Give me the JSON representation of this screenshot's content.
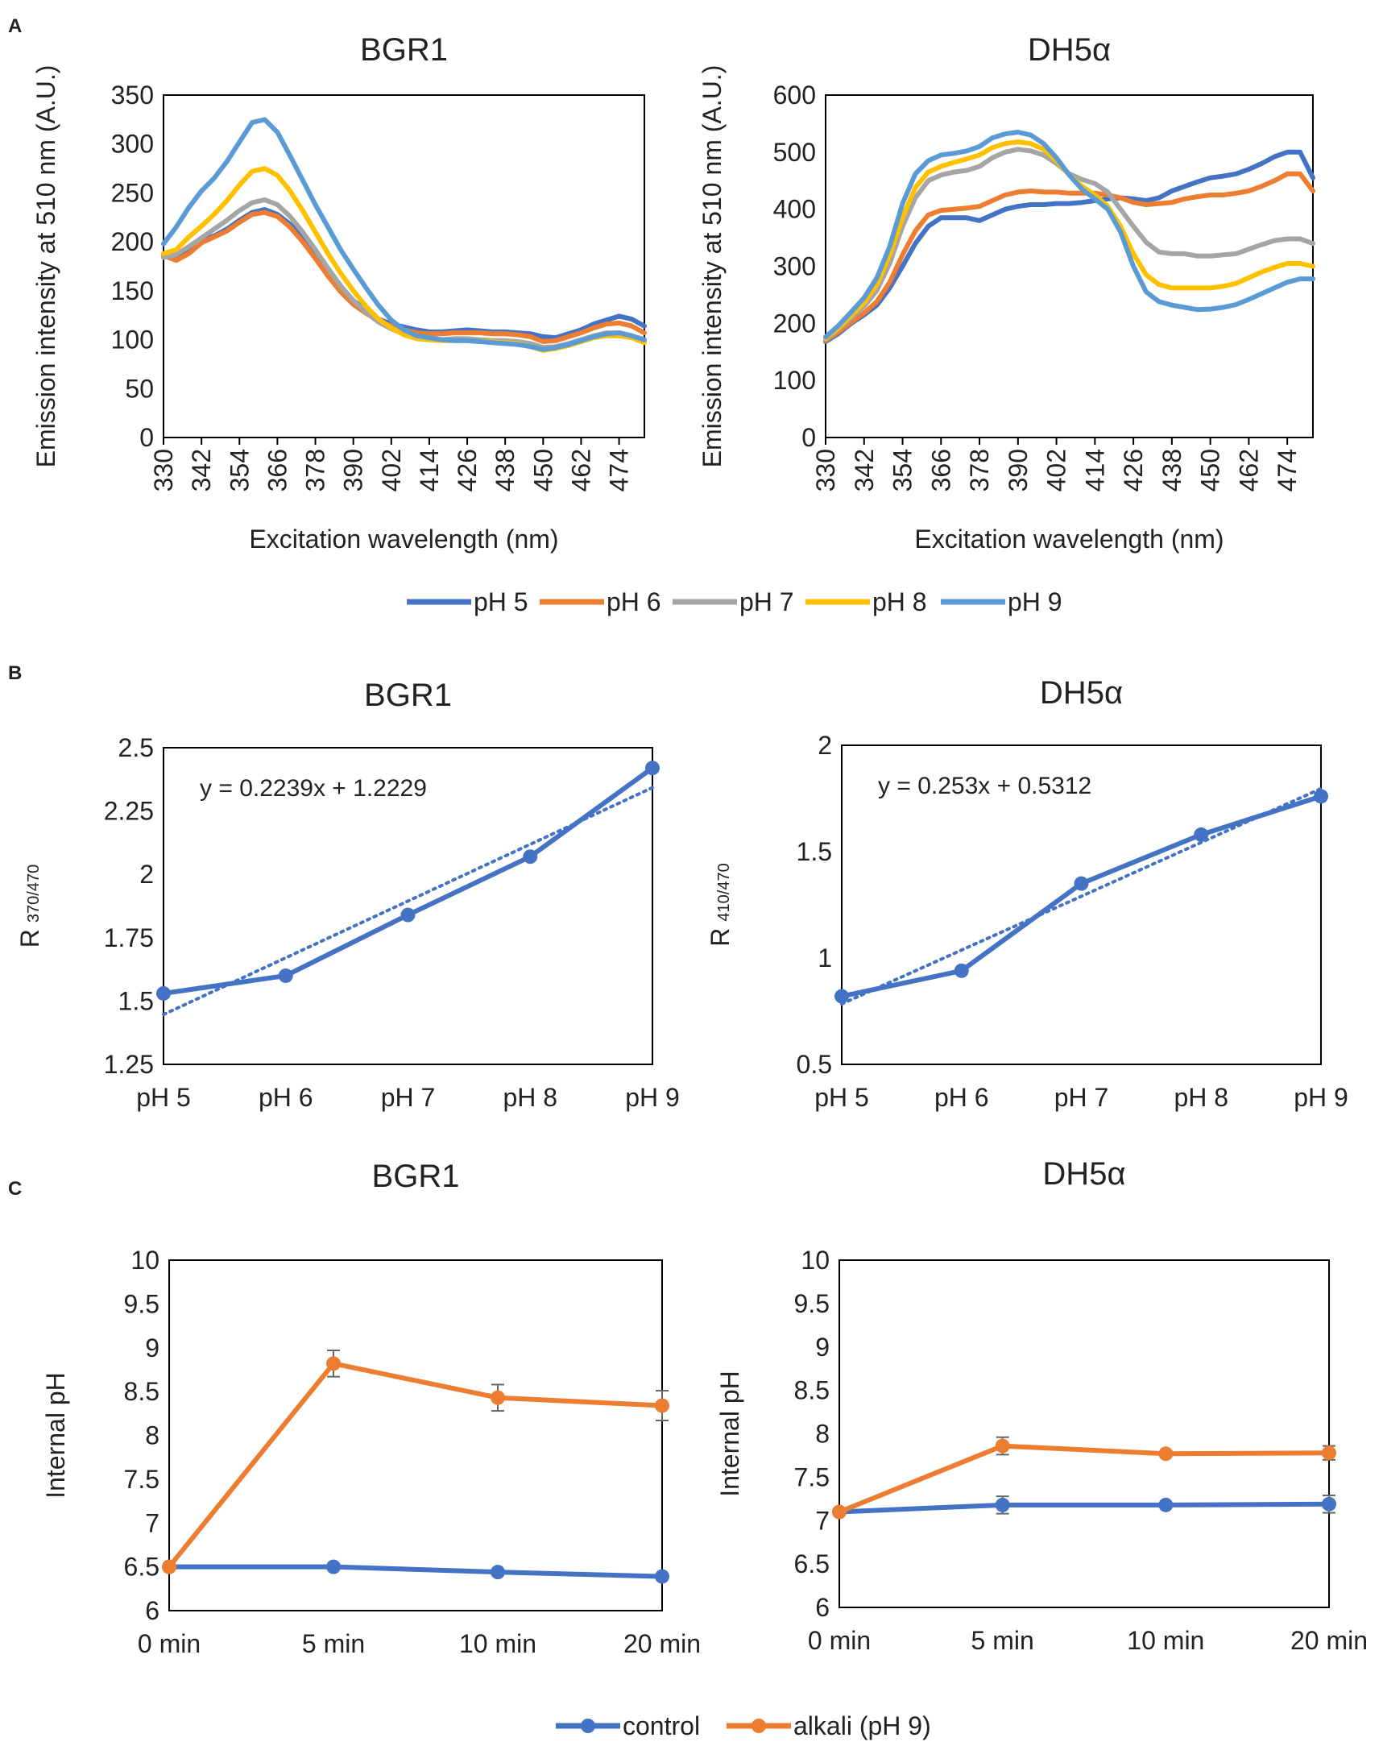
{
  "panels": {
    "A": "A",
    "B": "B",
    "C": "C"
  },
  "colors": {
    "pH 5": "#4472c4",
    "pH 6": "#ed7d31",
    "pH 7": "#a5a5a5",
    "pH 8": "#ffc000",
    "pH 9": "#5b9bd5",
    "control": "#4472c4",
    "alkali": "#ed7d31",
    "axis": "#000000",
    "text": "#222222"
  },
  "legendA": [
    "pH 5",
    "pH 6",
    "pH 7",
    "pH 8",
    "pH 9"
  ],
  "legendC": [
    "control",
    "alkali (pH 9)"
  ],
  "chart_data": [
    {
      "id": "a1",
      "type": "line",
      "title": "BGR1",
      "xlabel": "Excitation wavelength (nm)",
      "ylabel": "Emission intensity at 510 nm (A.U.)",
      "ylim": [
        0,
        350
      ],
      "yticks": [
        0,
        50,
        100,
        150,
        200,
        250,
        300,
        350
      ],
      "xlim": [
        330,
        482
      ],
      "xticks": [
        330,
        342,
        354,
        366,
        378,
        390,
        402,
        414,
        426,
        438,
        450,
        462,
        474
      ],
      "series": [
        {
          "name": "pH 5",
          "x": [
            330,
            334,
            338,
            342,
            346,
            350,
            354,
            358,
            362,
            366,
            370,
            374,
            378,
            382,
            386,
            390,
            394,
            398,
            402,
            406,
            410,
            414,
            418,
            422,
            426,
            430,
            434,
            438,
            442,
            446,
            450,
            454,
            458,
            462,
            466,
            470,
            474,
            478,
            482
          ],
          "y": [
            188,
            185,
            192,
            202,
            206,
            213,
            222,
            230,
            233,
            228,
            218,
            204,
            188,
            170,
            153,
            140,
            130,
            121,
            116,
            113,
            110,
            108,
            108,
            109,
            110,
            109,
            108,
            108,
            107,
            106,
            103,
            102,
            106,
            110,
            116,
            120,
            124,
            121,
            114
          ]
        },
        {
          "name": "pH 6",
          "x": [
            330,
            334,
            338,
            342,
            346,
            350,
            354,
            358,
            362,
            366,
            370,
            374,
            378,
            382,
            386,
            390,
            394,
            398,
            402,
            406,
            410,
            414,
            418,
            422,
            426,
            430,
            434,
            438,
            442,
            446,
            450,
            454,
            458,
            462,
            466,
            470,
            474,
            478,
            482
          ],
          "y": [
            186,
            181,
            188,
            199,
            205,
            211,
            220,
            228,
            230,
            226,
            215,
            200,
            183,
            165,
            149,
            136,
            127,
            119,
            114,
            110,
            107,
            106,
            106,
            107,
            107,
            107,
            106,
            106,
            105,
            103,
            98,
            99,
            103,
            107,
            112,
            116,
            117,
            114,
            107
          ]
        },
        {
          "name": "pH 7",
          "x": [
            330,
            334,
            338,
            342,
            346,
            350,
            354,
            358,
            362,
            366,
            370,
            374,
            378,
            382,
            386,
            390,
            394,
            398,
            402,
            406,
            410,
            414,
            418,
            422,
            426,
            430,
            434,
            438,
            442,
            446,
            450,
            454,
            458,
            462,
            466,
            470,
            474,
            478,
            482
          ],
          "y": [
            184,
            187,
            195,
            204,
            213,
            222,
            232,
            240,
            243,
            238,
            226,
            210,
            192,
            173,
            155,
            140,
            128,
            118,
            111,
            106,
            102,
            100,
            100,
            101,
            101,
            100,
            99,
            99,
            98,
            96,
            92,
            93,
            96,
            100,
            104,
            107,
            107,
            104,
            98
          ]
        },
        {
          "name": "pH 8",
          "x": [
            330,
            334,
            338,
            342,
            346,
            350,
            354,
            358,
            362,
            366,
            370,
            374,
            378,
            382,
            386,
            390,
            394,
            398,
            402,
            406,
            410,
            414,
            418,
            422,
            426,
            430,
            434,
            438,
            442,
            446,
            450,
            454,
            458,
            462,
            466,
            470,
            474,
            478,
            482
          ],
          "y": [
            188,
            192,
            205,
            216,
            228,
            242,
            258,
            272,
            275,
            268,
            252,
            232,
            210,
            188,
            168,
            150,
            134,
            121,
            112,
            105,
            101,
            100,
            99,
            99,
            99,
            98,
            98,
            97,
            96,
            93,
            89,
            91,
            94,
            98,
            102,
            104,
            104,
            102,
            97
          ]
        },
        {
          "name": "pH 9",
          "x": [
            330,
            334,
            338,
            342,
            346,
            350,
            354,
            358,
            362,
            366,
            370,
            374,
            378,
            382,
            386,
            390,
            394,
            398,
            402,
            406,
            410,
            414,
            418,
            422,
            426,
            430,
            434,
            438,
            442,
            446,
            450,
            454,
            458,
            462,
            466,
            470,
            474,
            478,
            482
          ],
          "y": [
            198,
            215,
            235,
            252,
            265,
            282,
            302,
            322,
            325,
            312,
            288,
            263,
            238,
            215,
            192,
            172,
            153,
            135,
            120,
            110,
            104,
            102,
            100,
            99,
            99,
            98,
            97,
            96,
            95,
            93,
            90,
            92,
            95,
            99,
            103,
            106,
            107,
            104,
            100
          ]
        }
      ]
    },
    {
      "id": "a2",
      "type": "line",
      "title": "DH5α",
      "xlabel": "Excitation wavelength (nm)",
      "ylabel": "Emission intensity at 510 nm (A.U.)",
      "ylim": [
        0,
        600
      ],
      "yticks": [
        0,
        100,
        200,
        300,
        400,
        500,
        600
      ],
      "xlim": [
        330,
        482
      ],
      "xticks": [
        330,
        342,
        354,
        366,
        378,
        390,
        402,
        414,
        426,
        438,
        450,
        462,
        474
      ],
      "series": [
        {
          "name": "pH 5",
          "x": [
            330,
            334,
            338,
            342,
            346,
            350,
            354,
            358,
            362,
            366,
            370,
            374,
            378,
            382,
            386,
            390,
            394,
            398,
            402,
            406,
            410,
            414,
            418,
            422,
            426,
            430,
            434,
            438,
            442,
            446,
            450,
            454,
            458,
            462,
            466,
            470,
            474,
            478,
            482
          ],
          "y": [
            168,
            182,
            200,
            215,
            232,
            262,
            300,
            340,
            370,
            385,
            385,
            385,
            380,
            390,
            400,
            405,
            408,
            408,
            410,
            410,
            412,
            415,
            418,
            420,
            418,
            415,
            420,
            432,
            440,
            448,
            455,
            458,
            462,
            470,
            480,
            492,
            500,
            500,
            455
          ]
        },
        {
          "name": "pH 6",
          "x": [
            330,
            334,
            338,
            342,
            346,
            350,
            354,
            358,
            362,
            366,
            370,
            374,
            378,
            382,
            386,
            390,
            394,
            398,
            402,
            406,
            410,
            414,
            418,
            422,
            426,
            430,
            434,
            438,
            442,
            446,
            450,
            454,
            458,
            462,
            466,
            470,
            474,
            478,
            482
          ],
          "y": [
            170,
            185,
            202,
            218,
            238,
            272,
            320,
            362,
            390,
            398,
            400,
            402,
            405,
            415,
            425,
            430,
            432,
            430,
            430,
            428,
            428,
            428,
            425,
            420,
            412,
            408,
            410,
            412,
            418,
            422,
            425,
            425,
            428,
            432,
            440,
            450,
            462,
            462,
            432
          ]
        },
        {
          "name": "pH 7",
          "x": [
            330,
            334,
            338,
            342,
            346,
            350,
            354,
            358,
            362,
            366,
            370,
            374,
            378,
            382,
            386,
            390,
            394,
            398,
            402,
            406,
            410,
            414,
            418,
            422,
            426,
            430,
            434,
            438,
            442,
            446,
            450,
            454,
            458,
            462,
            466,
            470,
            474,
            478,
            482
          ],
          "y": [
            172,
            190,
            210,
            230,
            258,
            305,
            370,
            420,
            450,
            460,
            465,
            468,
            475,
            490,
            500,
            505,
            502,
            495,
            480,
            462,
            452,
            445,
            430,
            400,
            370,
            342,
            325,
            322,
            322,
            318,
            318,
            320,
            322,
            330,
            338,
            345,
            348,
            348,
            340
          ]
        },
        {
          "name": "pH 8",
          "x": [
            330,
            334,
            338,
            342,
            346,
            350,
            354,
            358,
            362,
            366,
            370,
            374,
            378,
            382,
            386,
            390,
            394,
            398,
            402,
            406,
            410,
            414,
            418,
            422,
            426,
            430,
            434,
            438,
            442,
            446,
            450,
            454,
            458,
            462,
            466,
            470,
            474,
            478,
            482
          ],
          "y": [
            174,
            192,
            214,
            236,
            268,
            320,
            385,
            438,
            465,
            475,
            482,
            488,
            495,
            508,
            515,
            518,
            515,
            505,
            485,
            460,
            440,
            425,
            405,
            370,
            322,
            285,
            268,
            262,
            262,
            262,
            262,
            265,
            270,
            280,
            290,
            298,
            305,
            305,
            300
          ]
        },
        {
          "name": "pH 9",
          "x": [
            330,
            334,
            338,
            342,
            346,
            350,
            354,
            358,
            362,
            366,
            370,
            374,
            378,
            382,
            386,
            390,
            394,
            398,
            402,
            406,
            410,
            414,
            418,
            422,
            426,
            430,
            434,
            438,
            442,
            446,
            450,
            454,
            458,
            462,
            466,
            470,
            474,
            478,
            482
          ],
          "y": [
            176,
            196,
            220,
            245,
            280,
            335,
            410,
            462,
            485,
            495,
            498,
            502,
            510,
            525,
            532,
            535,
            530,
            515,
            490,
            460,
            435,
            418,
            400,
            360,
            300,
            255,
            238,
            232,
            228,
            224,
            225,
            228,
            233,
            242,
            252,
            262,
            272,
            278,
            278
          ]
        }
      ]
    },
    {
      "id": "b1",
      "type": "line",
      "title": "BGR1",
      "xlabel": "",
      "ylabel": "R",
      "ylabel_sub": "370/470",
      "ylim": [
        1.25,
        2.5
      ],
      "yticks": [
        1.25,
        1.5,
        1.75,
        2,
        2.25,
        2.5
      ],
      "ytick_labels": [
        "1.25",
        "1.5",
        "1.75",
        "2",
        "2.25",
        "2.5"
      ],
      "categories": [
        "pH 5",
        "pH 6",
        "pH 7",
        "pH 8",
        "pH 9"
      ],
      "values": [
        1.53,
        1.6,
        1.84,
        2.07,
        2.42
      ],
      "trendline": {
        "slope": 0.2239,
        "intercept": 1.2229
      },
      "equation": "y = 0.2239x + 1.2229"
    },
    {
      "id": "b2",
      "type": "line",
      "title": "DH5α",
      "xlabel": "",
      "ylabel": "R",
      "ylabel_sub": "410/470",
      "ylim": [
        0.5,
        2
      ],
      "yticks": [
        0.5,
        1,
        1.5,
        2
      ],
      "ytick_labels": [
        "0.5",
        "1",
        "1.5",
        "2"
      ],
      "categories": [
        "pH 5",
        "pH 6",
        "pH 7",
        "pH 8",
        "pH 9"
      ],
      "values": [
        0.82,
        0.94,
        1.35,
        1.58,
        1.76
      ],
      "trendline": {
        "slope": 0.253,
        "intercept": 0.5312
      },
      "equation": "y = 0.253x + 0.5312"
    },
    {
      "id": "c1",
      "type": "line",
      "title": "BGR1",
      "xlabel": "",
      "ylabel": "Internal pH",
      "ylim": [
        6,
        10
      ],
      "yticks": [
        6,
        6.5,
        7,
        7.5,
        8,
        8.5,
        9,
        9.5,
        10
      ],
      "ytick_labels": [
        "6",
        "6.5",
        "7",
        "7.5",
        "8",
        "8.5",
        "9",
        "9.5",
        "10"
      ],
      "categories": [
        "0 min",
        "5 min",
        "10 min",
        "20 min"
      ],
      "series": [
        {
          "name": "control",
          "values": [
            6.5,
            6.5,
            6.44,
            6.39
          ],
          "errors": [
            0,
            0.02,
            0.03,
            0.03
          ]
        },
        {
          "name": "alkali (pH 9)",
          "values": [
            6.5,
            8.82,
            8.43,
            8.34
          ],
          "errors": [
            0,
            0.15,
            0.15,
            0.17
          ]
        }
      ]
    },
    {
      "id": "c2",
      "type": "line",
      "title": "DH5α",
      "xlabel": "",
      "ylabel": "Internal pH",
      "ylim": [
        6,
        10
      ],
      "yticks": [
        6,
        6.5,
        7,
        7.5,
        8,
        8.5,
        9,
        9.5,
        10
      ],
      "ytick_labels": [
        "6",
        "6.5",
        "7",
        "7.5",
        "8",
        "8.5",
        "9",
        "9.5",
        "10"
      ],
      "categories": [
        "0 min",
        "5 min",
        "10 min",
        "20 min"
      ],
      "series": [
        {
          "name": "control",
          "values": [
            7.1,
            7.18,
            7.18,
            7.19
          ],
          "errors": [
            0,
            0.1,
            0.02,
            0.1
          ]
        },
        {
          "name": "alkali (pH 9)",
          "values": [
            7.1,
            7.86,
            7.77,
            7.78
          ],
          "errors": [
            0,
            0.1,
            0.03,
            0.08
          ]
        }
      ]
    }
  ]
}
